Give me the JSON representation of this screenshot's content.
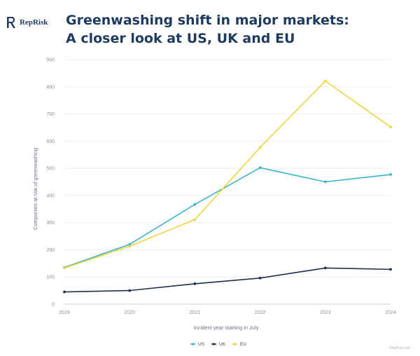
{
  "brand": {
    "name": "RepRisk",
    "color": "#1f3a5f"
  },
  "title": {
    "line1": "Greenwashing shift in major markets:",
    "line2": "A closer look at US, UK and EU"
  },
  "source": "RepRisk.com",
  "chart_data": {
    "type": "line",
    "x": [
      "2019",
      "2020",
      "2021",
      "2022",
      "2023",
      "2024"
    ],
    "xlabel": "Incident year starting in July",
    "ylabel": "Companies at risk of greenwashing",
    "ylim": [
      0,
      900
    ],
    "yticks": [
      0,
      100,
      200,
      300,
      400,
      500,
      600,
      700,
      800,
      900
    ],
    "grid": true,
    "legend_position": "bottom-center",
    "series": [
      {
        "name": "US",
        "color": "#3bb3c9",
        "values": [
          135,
          220,
          367,
          502,
          450,
          477
        ]
      },
      {
        "name": "UK",
        "color": "#1f2f4d",
        "values": [
          45,
          50,
          75,
          96,
          133,
          128
        ]
      },
      {
        "name": "EU",
        "color": "#f0d43c",
        "values": [
          133,
          213,
          311,
          577,
          821,
          652
        ]
      }
    ]
  }
}
